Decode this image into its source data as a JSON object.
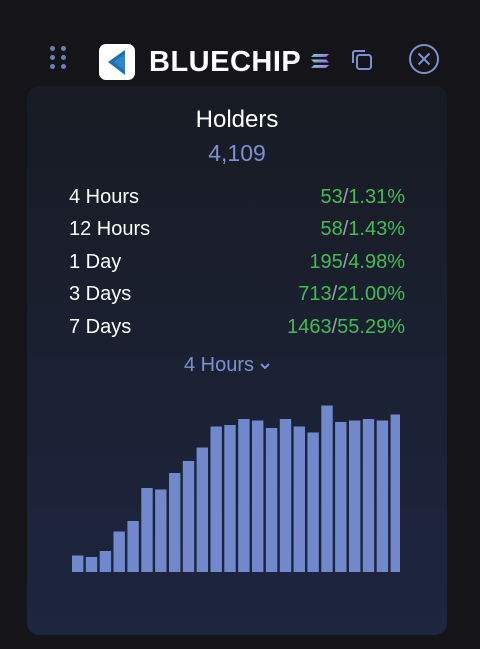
{
  "header": {
    "title": "BLUECHIP",
    "icons": [
      "drag-handle-icon",
      "bluechip-logo",
      "solana-icon",
      "copy-icon",
      "close-icon"
    ]
  },
  "holders": {
    "label": "Holders",
    "value": "4,109"
  },
  "stats": [
    {
      "label": "4 Hours",
      "count": "53",
      "percent": "1.31%"
    },
    {
      "label": "12 Hours",
      "count": "58",
      "percent": "1.43%"
    },
    {
      "label": "1 Day",
      "count": "195",
      "percent": "4.98%"
    },
    {
      "label": "3 Days",
      "count": "713",
      "percent": "21.00%"
    },
    {
      "label": "7 Days",
      "count": "1463",
      "percent": "55.29%"
    }
  ],
  "period_selector": {
    "value": "4 Hours"
  },
  "colors": {
    "accent": "#7d8fd0",
    "positive": "#3fbd55",
    "bar": "#7189cc"
  },
  "chart_data": {
    "type": "bar",
    "values": [
      11,
      10,
      14,
      27,
      34,
      56,
      55,
      66,
      74,
      83,
      97,
      98,
      102,
      101,
      96,
      102,
      97,
      93,
      111,
      100,
      101,
      102,
      101,
      105
    ],
    "ylim": [
      0,
      120
    ]
  }
}
